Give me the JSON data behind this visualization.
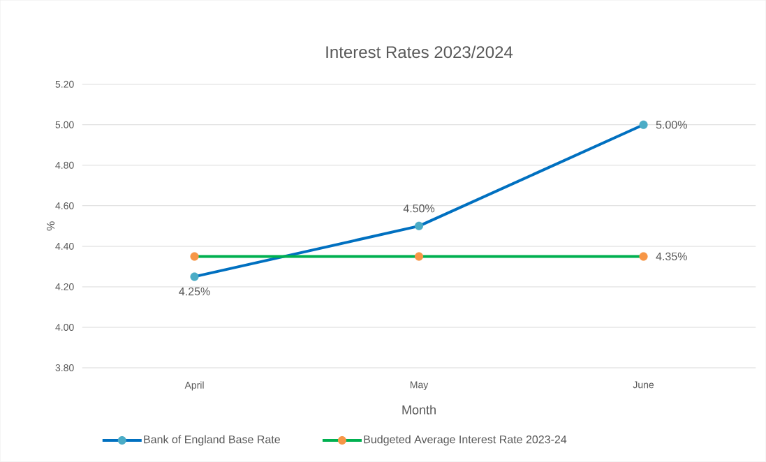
{
  "chart_data": {
    "type": "line",
    "title": "Interest Rates 2023/2024",
    "xlabel": "Month",
    "ylabel": "%",
    "categories": [
      "April",
      "May",
      "June"
    ],
    "series": [
      {
        "name": "Bank of England Base Rate",
        "color": "#0070c0",
        "colors": [
          "#4bacc6",
          "#4bacc6",
          "#4bacc6"
        ],
        "values": [
          4.25,
          4.5,
          5.0
        ],
        "value_labels": [
          "4.25%",
          "4.50%",
          "5.00%"
        ]
      },
      {
        "name": "Budgeted Average Interest Rate 2023-24",
        "color": "#00b050",
        "colors": [
          "#f79646",
          "#f79646",
          "#f79646"
        ],
        "values": [
          4.35,
          4.35,
          4.35
        ],
        "value_labels": [
          null,
          null,
          "4.35%"
        ]
      }
    ],
    "ylim": [
      3.8,
      5.2
    ],
    "yticks": [
      {
        "value": 3.8,
        "label": "3.80"
      },
      {
        "value": 4.0,
        "label": "4.00"
      },
      {
        "value": 4.2,
        "label": "4.20"
      },
      {
        "value": 4.4,
        "label": "4.40"
      },
      {
        "value": 4.6,
        "label": "4.60"
      },
      {
        "value": 4.8,
        "label": "4.80"
      },
      {
        "value": 5.0,
        "label": "5.00"
      },
      {
        "value": 5.2,
        "label": "5.20"
      }
    ],
    "grid": "y",
    "legend": "bottom",
    "marker": "circle",
    "line_style": "solid"
  }
}
